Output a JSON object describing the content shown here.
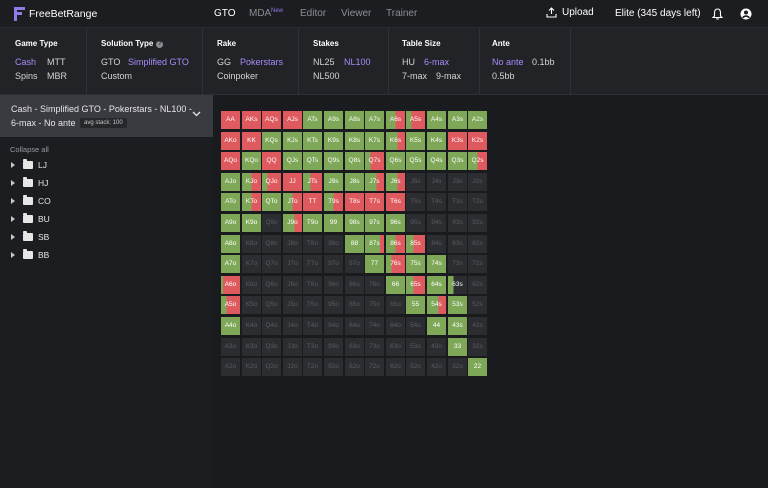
{
  "app": {
    "logo_text": "FreeBetRange",
    "brand_color": "#8f7ae6"
  },
  "nav": {
    "tabs": [
      {
        "label": "GTO",
        "active": true
      },
      {
        "label": "MDA",
        "active": false
      },
      {
        "label": "Editor",
        "active": false
      },
      {
        "label": "Viewer",
        "active": false
      },
      {
        "label": "Trainer",
        "active": false
      }
    ],
    "mda_badge": "New",
    "upload_label": "Upload",
    "upload_icon": "upload-icon",
    "subscription": "Elite (345 days left)",
    "notification_icon": "bell-icon",
    "account_icon": "user-circle-icon"
  },
  "filters": {
    "game_type": {
      "title": "Game Type",
      "options": [
        "Cash",
        "MTT",
        "Spins",
        "MBR"
      ],
      "selected": "Cash"
    },
    "solution_type": {
      "title": "Solution Type",
      "options": [
        "GTO",
        "Simplified GTO",
        "Custom"
      ],
      "selected": "Simplified GTO"
    },
    "rake": {
      "title": "Rake",
      "options": [
        "GG",
        "Pokerstars",
        "Coinpoker"
      ],
      "selected": "Pokerstars"
    },
    "stakes": {
      "title": "Stakes",
      "options": [
        "NL25",
        "NL100",
        "NL500"
      ],
      "selected": "NL100"
    },
    "table_size": {
      "title": "Table Size",
      "options": [
        "HU",
        "6-max",
        "7-max",
        "9-max"
      ],
      "selected": "6-max"
    },
    "ante": {
      "title": "Ante",
      "options": [
        "No ante",
        "0.1bb",
        "0.5bb"
      ],
      "selected": "No ante"
    }
  },
  "sidebar": {
    "selector_line1": "Cash - Simplified GTO - Pokerstars - NL100 -",
    "selector_line2": "6-max - No ante",
    "avg_stack": "avg stack: 100",
    "collapse_all": "Collapse all",
    "positions": [
      "LJ",
      "HJ",
      "CO",
      "BU",
      "SB",
      "BB"
    ]
  },
  "colors": {
    "raise": "#7ea857",
    "allin": "#df5a5e",
    "fold": "#2c2d31",
    "fold_text": "#5a5b60"
  },
  "matrix": {
    "ranks": [
      "A",
      "K",
      "Q",
      "J",
      "T",
      "9",
      "8",
      "7",
      "6",
      "5",
      "4",
      "3",
      "2"
    ],
    "rows": [
      [
        "AA",
        "AKs",
        "AQs",
        "AJs",
        "ATs",
        "A9s",
        "A8s",
        "A7s",
        "A6s",
        "A5s",
        "A4s",
        "A3s",
        "A2s"
      ],
      [
        "AKo",
        "KK",
        "KQs",
        "KJs",
        "KTs",
        "K9s",
        "K8s",
        "K7s",
        "K6s",
        "K5s",
        "K4s",
        "K3s",
        "K2s"
      ],
      [
        "AQo",
        "KQo",
        "QQ",
        "QJs",
        "QTs",
        "Q9s",
        "Q8s",
        "Q7s",
        "Q6s",
        "Q5s",
        "Q4s",
        "Q3s",
        "Q2s"
      ],
      [
        "AJo",
        "KJo",
        "QJo",
        "JJ",
        "JTs",
        "J9s",
        "J8s",
        "J7s",
        "J6s",
        "J5s",
        "J4s",
        "J3s",
        "J2s"
      ],
      [
        "ATo",
        "KTo",
        "QTo",
        "JTo",
        "TT",
        "T9s",
        "T8s",
        "T7s",
        "T6s",
        "T5s",
        "T4s",
        "T3s",
        "T2s"
      ],
      [
        "A9o",
        "K9o",
        "Q9o",
        "J9o",
        "T9o",
        "99",
        "98s",
        "97s",
        "96s",
        "95s",
        "94s",
        "93s",
        "92s"
      ],
      [
        "A8o",
        "K8o",
        "Q8o",
        "J8o",
        "T8o",
        "98o",
        "88",
        "87s",
        "86s",
        "85s",
        "84s",
        "83s",
        "82s"
      ],
      [
        "A7o",
        "K7o",
        "Q7o",
        "J7o",
        "T7o",
        "97o",
        "87o",
        "77",
        "76s",
        "75s",
        "74s",
        "73s",
        "72s"
      ],
      [
        "A6o",
        "K6o",
        "Q6o",
        "J6o",
        "T6o",
        "96o",
        "86o",
        "76o",
        "66",
        "65s",
        "64s",
        "63s",
        "62s"
      ],
      [
        "A5o",
        "K5o",
        "Q5o",
        "J5o",
        "T5o",
        "95o",
        "85o",
        "75o",
        "65o",
        "55",
        "54s",
        "53s",
        "52s"
      ],
      [
        "A4o",
        "K4o",
        "Q4o",
        "J4o",
        "T4o",
        "94o",
        "84o",
        "74o",
        "64o",
        "54o",
        "44",
        "43s",
        "42s"
      ],
      [
        "A3o",
        "K3o",
        "Q3o",
        "J3o",
        "T3o",
        "93o",
        "83o",
        "73o",
        "63o",
        "53o",
        "43o",
        "33",
        "32s"
      ],
      [
        "A2o",
        "K2o",
        "Q2o",
        "J2o",
        "T2o",
        "92o",
        "82o",
        "72o",
        "62o",
        "52o",
        "42o",
        "32o",
        "22"
      ]
    ],
    "actions": [
      [
        [
          0,
          1
        ],
        [
          0,
          1
        ],
        [
          0,
          1
        ],
        [
          0,
          1
        ],
        [
          1,
          0
        ],
        [
          1,
          0
        ],
        [
          1,
          0
        ],
        [
          1,
          0
        ],
        [
          0.5,
          0.5
        ],
        [
          0.3,
          0.7
        ],
        [
          1,
          0
        ],
        [
          1,
          0
        ],
        [
          1,
          0
        ]
      ],
      [
        [
          0,
          1
        ],
        [
          0,
          1
        ],
        [
          1,
          0
        ],
        [
          1,
          0
        ],
        [
          1,
          0
        ],
        [
          1,
          0
        ],
        [
          1,
          0
        ],
        [
          1,
          0
        ],
        [
          0.6,
          0.4
        ],
        [
          1,
          0
        ],
        [
          1,
          0
        ],
        [
          0,
          1
        ],
        [
          0,
          1
        ]
      ],
      [
        [
          0,
          1
        ],
        [
          1,
          0
        ],
        [
          0,
          1
        ],
        [
          1,
          0
        ],
        [
          1,
          0
        ],
        [
          1,
          0
        ],
        [
          1,
          0
        ],
        [
          0.3,
          0.7
        ],
        [
          1,
          0
        ],
        [
          1,
          0
        ],
        [
          1,
          0
        ],
        [
          1,
          0
        ],
        [
          0.5,
          0.5
        ]
      ],
      [
        [
          1,
          0
        ],
        [
          0.5,
          0.5
        ],
        [
          0.3,
          0.7
        ],
        [
          0,
          1
        ],
        [
          0.4,
          0.6
        ],
        [
          1,
          0
        ],
        [
          1,
          0
        ],
        [
          0.6,
          0.4
        ],
        [
          0.6,
          0.4
        ],
        [
          0,
          0
        ],
        [
          0,
          0
        ],
        [
          0,
          0
        ],
        [
          0,
          0
        ]
      ],
      [
        [
          1,
          0
        ],
        [
          0.5,
          0.5
        ],
        [
          1,
          0
        ],
        [
          0.5,
          0.5
        ],
        [
          0,
          1
        ],
        [
          0.5,
          0.5
        ],
        [
          0,
          1
        ],
        [
          0,
          1
        ],
        [
          0,
          1
        ],
        [
          0,
          0
        ],
        [
          0,
          0
        ],
        [
          0,
          0
        ],
        [
          0,
          0
        ]
      ],
      [
        [
          1,
          0
        ],
        [
          1,
          0
        ],
        [
          0,
          0
        ],
        [
          0.6,
          0.4
        ],
        [
          1,
          0
        ],
        [
          1,
          0
        ],
        [
          1,
          0
        ],
        [
          1,
          0
        ],
        [
          1,
          0
        ],
        [
          0,
          0
        ],
        [
          0,
          0
        ],
        [
          0,
          0
        ],
        [
          0,
          0
        ]
      ],
      [
        [
          1,
          0
        ],
        [
          0,
          0
        ],
        [
          0,
          0
        ],
        [
          0,
          0
        ],
        [
          0,
          0
        ],
        [
          0,
          0
        ],
        [
          1,
          0
        ],
        [
          0.8,
          0.2
        ],
        [
          0.5,
          0.5
        ],
        [
          0.4,
          0.6
        ],
        [
          0,
          0
        ],
        [
          0,
          0
        ],
        [
          0,
          0
        ]
      ],
      [
        [
          1,
          0
        ],
        [
          0,
          0
        ],
        [
          0,
          0
        ],
        [
          0,
          0
        ],
        [
          0,
          0
        ],
        [
          0,
          0
        ],
        [
          0,
          0
        ],
        [
          1,
          0
        ],
        [
          0.3,
          0.7
        ],
        [
          1,
          0
        ],
        [
          1,
          0
        ],
        [
          0,
          0
        ],
        [
          0,
          0
        ]
      ],
      [
        [
          0.1,
          0.9
        ],
        [
          0,
          0
        ],
        [
          0,
          0
        ],
        [
          0,
          0
        ],
        [
          0,
          0
        ],
        [
          0,
          0
        ],
        [
          0,
          0
        ],
        [
          0,
          0
        ],
        [
          1,
          0
        ],
        [
          0.4,
          0.6
        ],
        [
          1,
          0
        ],
        [
          0.3,
          0
        ],
        [
          0,
          0
        ]
      ],
      [
        [
          0.3,
          0.7
        ],
        [
          0,
          0
        ],
        [
          0,
          0
        ],
        [
          0,
          0
        ],
        [
          0,
          0
        ],
        [
          0,
          0
        ],
        [
          0,
          0
        ],
        [
          0,
          0
        ],
        [
          0,
          0
        ],
        [
          1,
          0
        ],
        [
          0.6,
          0.4
        ],
        [
          1,
          0
        ],
        [
          0,
          0
        ]
      ],
      [
        [
          1,
          0
        ],
        [
          0,
          0
        ],
        [
          0,
          0
        ],
        [
          0,
          0
        ],
        [
          0,
          0
        ],
        [
          0,
          0
        ],
        [
          0,
          0
        ],
        [
          0,
          0
        ],
        [
          0,
          0
        ],
        [
          0,
          0
        ],
        [
          1,
          0
        ],
        [
          1,
          0
        ],
        [
          0,
          0
        ]
      ],
      [
        [
          0,
          0
        ],
        [
          0,
          0
        ],
        [
          0,
          0
        ],
        [
          0,
          0
        ],
        [
          0,
          0
        ],
        [
          0,
          0
        ],
        [
          0,
          0
        ],
        [
          0,
          0
        ],
        [
          0,
          0
        ],
        [
          0,
          0
        ],
        [
          0,
          0
        ],
        [
          1,
          0
        ],
        [
          0,
          0
        ]
      ],
      [
        [
          0,
          0
        ],
        [
          0,
          0
        ],
        [
          0,
          0
        ],
        [
          0,
          0
        ],
        [
          0,
          0
        ],
        [
          0,
          0
        ],
        [
          0,
          0
        ],
        [
          0,
          0
        ],
        [
          0,
          0
        ],
        [
          0,
          0
        ],
        [
          0,
          0
        ],
        [
          0,
          0
        ],
        [
          1,
          0
        ]
      ]
    ]
  }
}
